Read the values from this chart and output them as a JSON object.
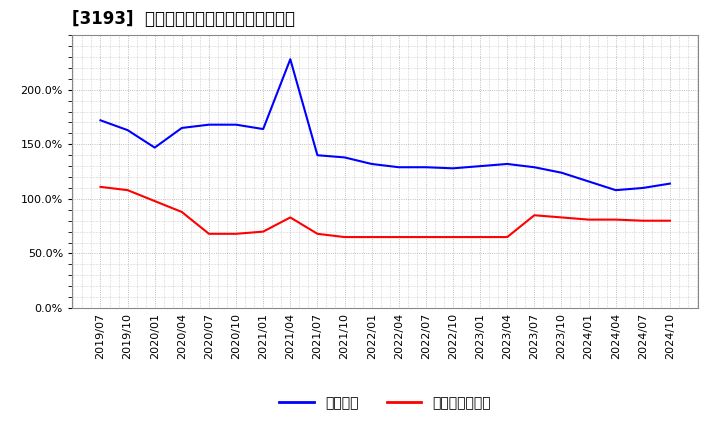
{
  "title": "[3193]  固定比率、固定長期適合率の推移",
  "x_labels": [
    "2019/07",
    "2019/10",
    "2020/01",
    "2020/04",
    "2020/07",
    "2020/10",
    "2021/01",
    "2021/04",
    "2021/07",
    "2021/10",
    "2022/01",
    "2022/04",
    "2022/07",
    "2022/10",
    "2023/01",
    "2023/04",
    "2023/07",
    "2023/10",
    "2024/01",
    "2024/04",
    "2024/07",
    "2024/10"
  ],
  "fixed_ratio": [
    1.72,
    1.63,
    1.47,
    1.65,
    1.68,
    1.68,
    1.64,
    2.28,
    1.4,
    1.38,
    1.32,
    1.29,
    1.29,
    1.28,
    1.3,
    1.32,
    1.29,
    1.24,
    1.16,
    1.08,
    1.1,
    1.14
  ],
  "fixed_lt_ratio": [
    1.11,
    1.08,
    0.98,
    0.88,
    0.68,
    0.68,
    0.7,
    0.83,
    0.68,
    0.65,
    0.65,
    0.65,
    0.65,
    0.65,
    0.65,
    0.65,
    0.85,
    0.83,
    0.81,
    0.81,
    0.8,
    0.8
  ],
  "blue_color": "#0000FF",
  "red_color": "#FF0000",
  "background_color": "#FFFFFF",
  "plot_bg_color": "#FFFFFF",
  "grid_color": "#AAAAAA",
  "ylim": [
    0.0,
    2.5
  ],
  "yticks": [
    0.0,
    0.5,
    1.0,
    1.5,
    2.0
  ],
  "legend_fixed": "固定比率",
  "legend_fixed_lt": "固定長期適合率",
  "title_fontsize": 12,
  "axis_fontsize": 8,
  "legend_fontsize": 10
}
